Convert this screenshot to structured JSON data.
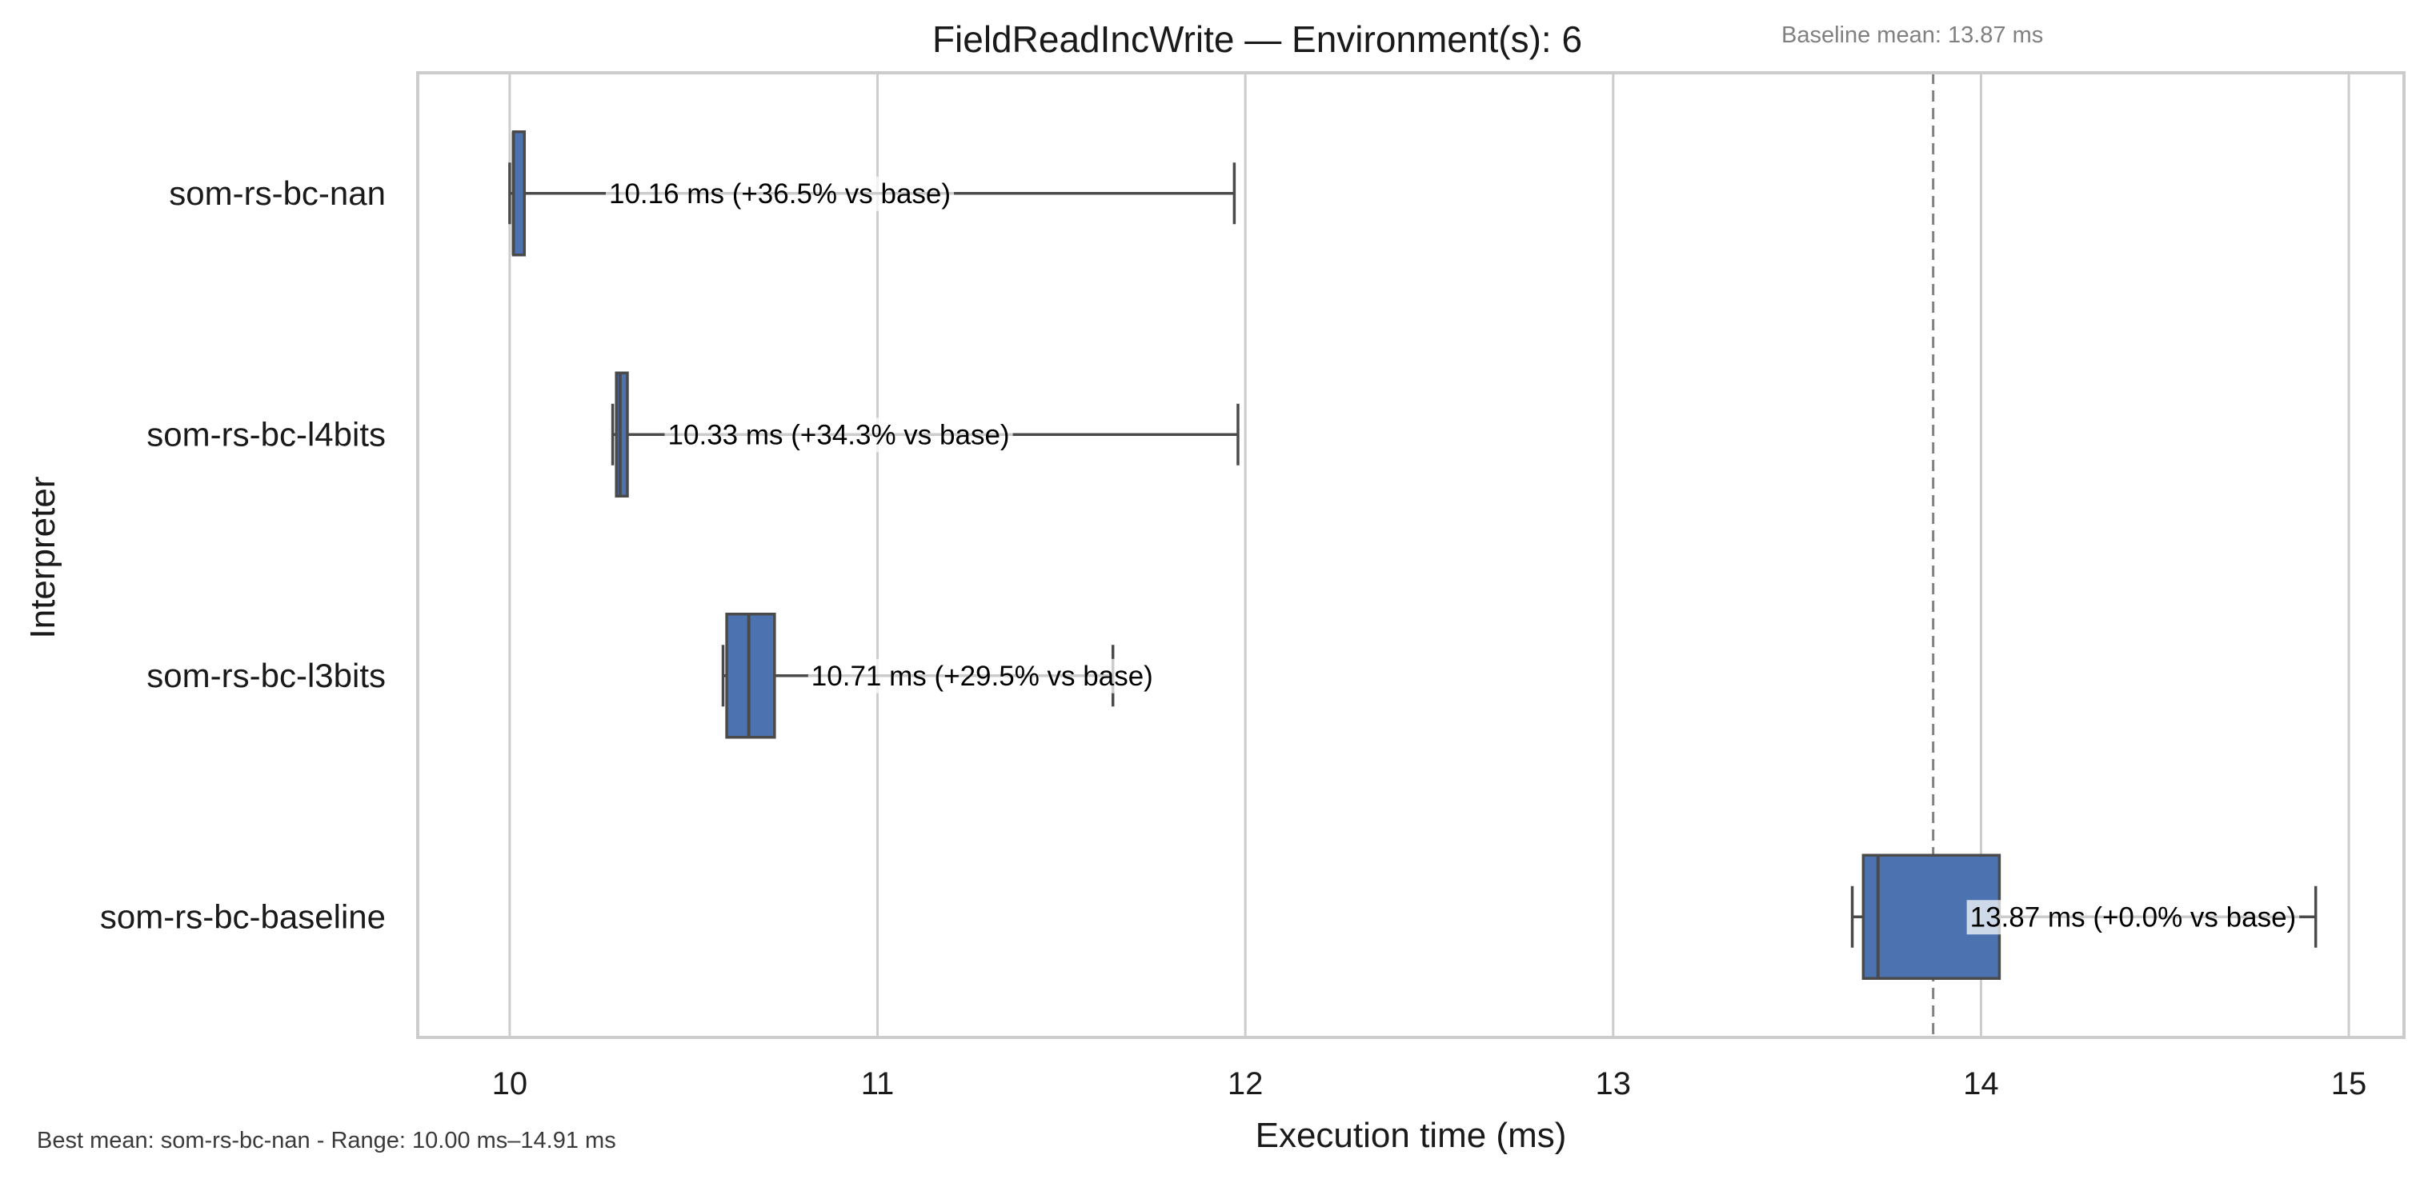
{
  "chart_data": {
    "type": "box",
    "title": "FieldReadIncWrite — Environment(s): 6",
    "baseline_note": "Baseline mean: 13.87 ms",
    "xlabel": "Execution time (ms)",
    "ylabel": "Interpreter",
    "xlim": [
      9.75,
      15.15
    ],
    "xticks": [
      10,
      11,
      12,
      13,
      14,
      15
    ],
    "grid": "vertical",
    "baseline_mean": 13.87,
    "box_color": "#4c72b0",
    "series": [
      {
        "name": "som-rs-bc-nan",
        "whisker_low": 10.0,
        "q1": 10.01,
        "median": 10.01,
        "q3": 10.04,
        "whisker_high": 11.97,
        "label": "10.16 ms  (+36.5% vs base)",
        "label_x": 10.27
      },
      {
        "name": "som-rs-bc-l4bits",
        "whisker_low": 10.28,
        "q1": 10.29,
        "median": 10.3,
        "q3": 10.32,
        "whisker_high": 11.98,
        "label": "10.33 ms  (+34.3% vs base)",
        "label_x": 10.43
      },
      {
        "name": "som-rs-bc-l3bits",
        "whisker_low": 10.58,
        "q1": 10.59,
        "median": 10.65,
        "q3": 10.72,
        "whisker_high": 11.64,
        "label": "10.71 ms  (+29.5% vs base)",
        "label_x": 10.82
      },
      {
        "name": "som-rs-bc-baseline",
        "whisker_low": 13.65,
        "q1": 13.68,
        "median": 13.72,
        "q3": 14.05,
        "whisker_high": 14.91,
        "label": "13.87 ms  (+0.0% vs base)",
        "label_x": 13.97
      }
    ],
    "footer": "Best mean: som-rs-bc-nan - Range: 10.00 ms–14.91 ms"
  }
}
